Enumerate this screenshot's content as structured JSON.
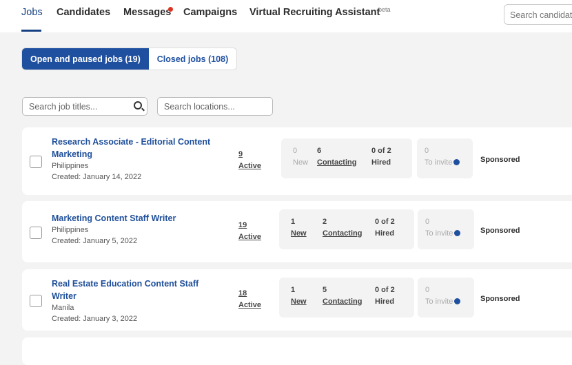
{
  "nav": {
    "tabs": [
      "Jobs",
      "Candidates",
      "Messages",
      "Campaigns",
      "Virtual Recruiting Assistant"
    ],
    "beta": "beta",
    "search_placeholder": "Search candidat"
  },
  "segments": {
    "open": "Open and paused jobs (19)",
    "closed": "Closed jobs (108)"
  },
  "filters": {
    "title_placeholder": "Search job titles...",
    "location_placeholder": "Search locations..."
  },
  "jobs": [
    {
      "title": "Research Associate - Editorial Content Marketing",
      "location": "Philippines",
      "created": "Created: January 14, 2022",
      "active_count": "9",
      "active_label": "Active",
      "new": "0",
      "new_label": "New",
      "contacting": "6",
      "contacting_label": "Contacting",
      "hired": "0 of 2",
      "hired_label": "Hired",
      "invite": "0",
      "invite_label": "To invite",
      "status": "Sponsored"
    },
    {
      "title": "Marketing Content Staff Writer",
      "location": "Philippines",
      "created": "Created: January 5, 2022",
      "active_count": "19",
      "active_label": "Active",
      "new": "1",
      "new_label": "New",
      "contacting": "2",
      "contacting_label": "Contacting",
      "hired": "0 of 2",
      "hired_label": "Hired",
      "invite": "0",
      "invite_label": "To invite",
      "status": "Sponsored"
    },
    {
      "title": "Real Estate Education Content Staff Writer",
      "location": "Manila",
      "created": "Created: January 3, 2022",
      "active_count": "18",
      "active_label": "Active",
      "new": "1",
      "new_label": "New",
      "contacting": "5",
      "contacting_label": "Contacting",
      "hired": "0 of 2",
      "hired_label": "Hired",
      "invite": "0",
      "invite_label": "To invite",
      "status": "Sponsored"
    }
  ]
}
